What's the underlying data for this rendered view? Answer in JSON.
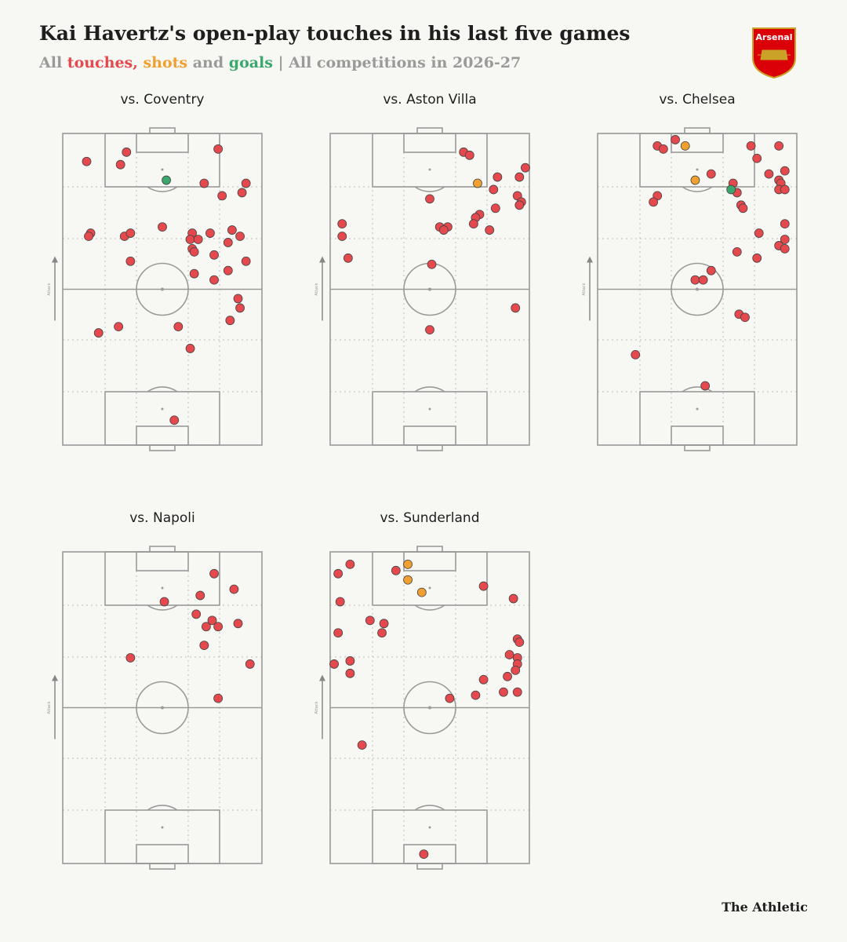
{
  "header": {
    "title": "Kai Havertz's open-play touches in his last five games",
    "subtitle": [
      {
        "text": "All ",
        "color": "#9a9a9a"
      },
      {
        "text": "touches, ",
        "color": "#e5484d"
      },
      {
        "text": "shots ",
        "color": "#f0a030"
      },
      {
        "text": "and ",
        "color": "#9a9a9a"
      },
      {
        "text": "goals",
        "color": "#3aa76d"
      },
      {
        "text": " | All competitions in 2026-27",
        "color": "#9a9a9a"
      }
    ],
    "badge": "Arsenal",
    "brand": "The Athletic"
  },
  "chart_data": [
    {
      "type": "scatter",
      "title": "vs. Coventry",
      "ylabel": "Attack",
      "xlim": [
        0,
        100
      ],
      "ylim": [
        0,
        100
      ],
      "series": [
        {
          "color": "#e5484d",
          "x": [
            12,
            32,
            29,
            78,
            71,
            92,
            90,
            80,
            14,
            13,
            31,
            34,
            50,
            65,
            74,
            85,
            89,
            64,
            68,
            83,
            65,
            66,
            76,
            34,
            92,
            66,
            76,
            83,
            88,
            89,
            84,
            58,
            28,
            18,
            64,
            56
          ],
          "values": [
            91,
            94,
            90,
            95,
            84,
            84,
            81,
            80,
            68,
            67,
            67,
            68,
            70,
            68,
            68,
            69,
            67,
            66,
            66,
            65,
            63,
            62,
            61,
            59,
            59,
            55,
            53,
            56,
            47,
            44,
            40,
            38,
            38,
            36,
            31,
            8
          ]
        },
        {
          "color": "#3aa76d",
          "x": [
            52
          ],
          "values": [
            85
          ]
        }
      ]
    },
    {
      "type": "scatter",
      "title": "vs. Aston Villa",
      "ylabel": "Attack",
      "xlim": [
        0,
        100
      ],
      "ylim": [
        0,
        100
      ],
      "series": [
        {
          "color": "#e5484d",
          "x": [
            67,
            70,
            98,
            95,
            84,
            82,
            94,
            96,
            95,
            50,
            83,
            75,
            73,
            6,
            55,
            59,
            72,
            57,
            80,
            6,
            9,
            51,
            93,
            50
          ],
          "values": [
            94,
            93,
            89,
            86,
            86,
            82,
            80,
            78,
            77,
            79,
            76,
            74,
            73,
            71,
            70,
            70,
            71,
            69,
            69,
            67,
            60,
            58,
            44,
            37
          ]
        },
        {
          "color": "#f0a030",
          "x": [
            74
          ],
          "values": [
            84
          ]
        }
      ]
    },
    {
      "type": "scatter",
      "title": "vs. Chelsea",
      "ylabel": "Attack",
      "xlim": [
        0,
        100
      ],
      "ylim": [
        0,
        100
      ],
      "series": [
        {
          "color": "#e5484d",
          "x": [
            30,
            33,
            39,
            77,
            91,
            80,
            86,
            94,
            57,
            91,
            92,
            91,
            94,
            68,
            70,
            30,
            28,
            72,
            73,
            94,
            81,
            94,
            91,
            94,
            70,
            80,
            57,
            49,
            53,
            71,
            74,
            19,
            54
          ],
          "values": [
            96,
            95,
            98,
            96,
            96,
            92,
            87,
            88,
            87,
            85,
            84,
            82,
            82,
            84,
            81,
            80,
            78,
            77,
            76,
            71,
            68,
            66,
            64,
            63,
            62,
            60,
            56,
            53,
            53,
            42,
            41,
            29,
            19
          ]
        },
        {
          "color": "#f0a030",
          "x": [
            44,
            49
          ],
          "values": [
            96,
            85
          ]
        },
        {
          "color": "#3aa76d",
          "x": [
            67
          ],
          "values": [
            82
          ]
        }
      ]
    },
    {
      "type": "scatter",
      "title": "vs. Napoli",
      "ylabel": "Attack",
      "xlim": [
        0,
        100
      ],
      "ylim": [
        0,
        100
      ],
      "series": [
        {
          "color": "#e5484d",
          "x": [
            76,
            86,
            69,
            51,
            67,
            75,
            72,
            78,
            88,
            71,
            34,
            94,
            78
          ],
          "values": [
            93,
            88,
            86,
            84,
            80,
            78,
            76,
            76,
            77,
            70,
            66,
            64,
            53
          ]
        }
      ]
    },
    {
      "type": "scatter",
      "title": "vs. Sunderland",
      "ylabel": "Attack",
      "xlim": [
        0,
        100
      ],
      "ylim": [
        0,
        100
      ],
      "series": [
        {
          "color": "#e5484d",
          "x": [
            10,
            4,
            33,
            77,
            92,
            5,
            20,
            27,
            26,
            4,
            94,
            95,
            90,
            94,
            10,
            94,
            2,
            93,
            10,
            89,
            77,
            87,
            94,
            73,
            60,
            16,
            47
          ],
          "values": [
            96,
            93,
            94,
            89,
            85,
            84,
            78,
            77,
            74,
            74,
            72,
            71,
            67,
            66,
            65,
            64,
            64,
            62,
            61,
            60,
            59,
            55,
            55,
            54,
            53,
            38,
            3
          ]
        },
        {
          "color": "#f0a030",
          "x": [
            39,
            39,
            46
          ],
          "values": [
            96,
            91,
            87
          ]
        }
      ]
    }
  ]
}
